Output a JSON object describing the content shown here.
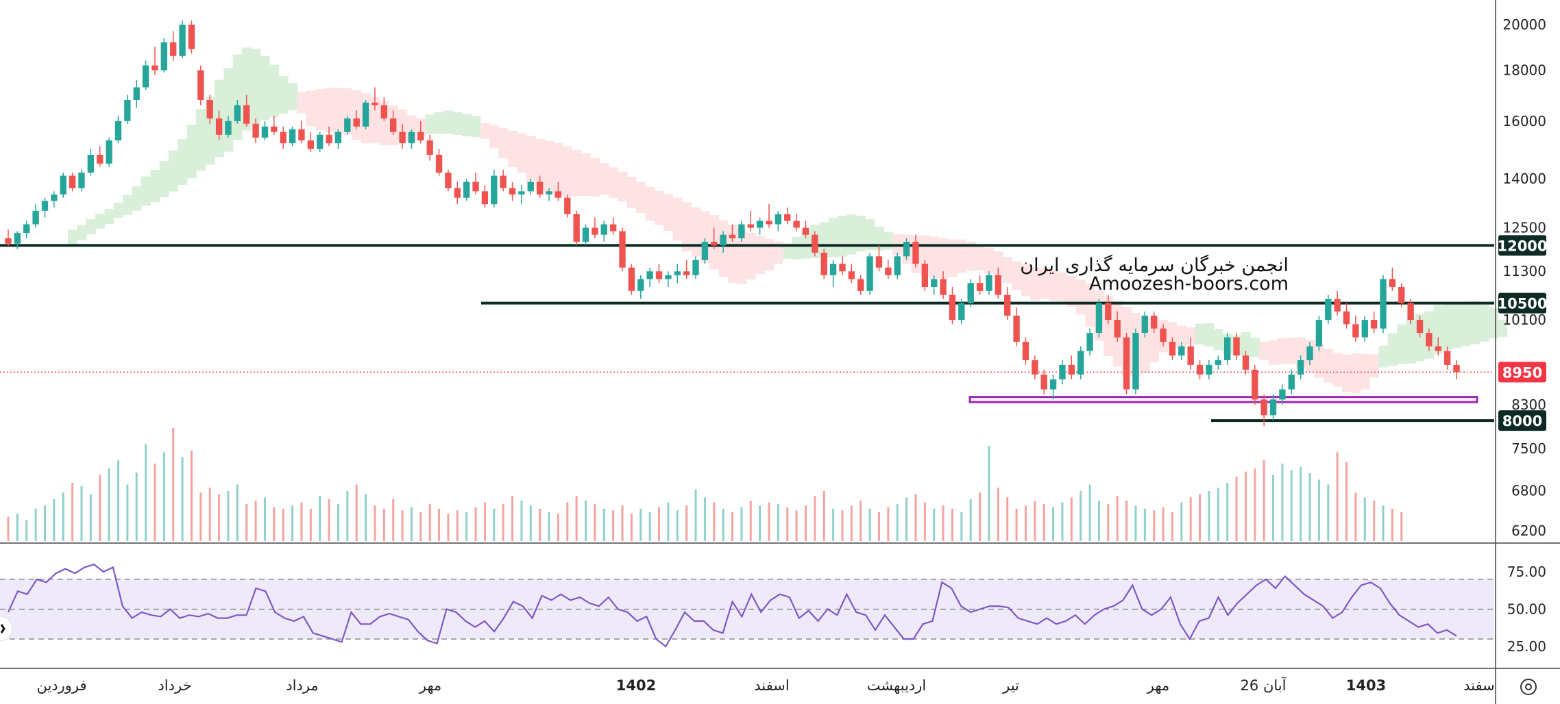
{
  "chart_data": {
    "type": "candlestick",
    "title": "",
    "watermark": {
      "line1": "انجمن خبرگان سرمایه گذاری ایران",
      "line2": "Amoozesh-boors.com"
    },
    "price_axis": {
      "ticks": [
        20000,
        18000,
        16000,
        14000,
        12500,
        11300,
        10100,
        8300,
        7500,
        6800,
        6200
      ],
      "labels": [
        "20000",
        "18000",
        "16000",
        "14000",
        "12500",
        "11300",
        "10100",
        "8300",
        "7500",
        "6800",
        "6200"
      ],
      "scale": "log"
    },
    "time_axis": {
      "labels": [
        {
          "text": "فروردین",
          "bold": false
        },
        {
          "text": "خرداد",
          "bold": false
        },
        {
          "text": "مرداد",
          "bold": false
        },
        {
          "text": "مهر",
          "bold": false
        },
        {
          "text": "1402",
          "bold": true
        },
        {
          "text": "اسفند",
          "bold": false
        },
        {
          "text": "اردیبهشت",
          "bold": false
        },
        {
          "text": "تیر",
          "bold": false
        },
        {
          "text": "مهر",
          "bold": false
        },
        {
          "text": "26 آبان",
          "bold": false
        },
        {
          "text": "1403",
          "bold": true
        },
        {
          "text": "سفند",
          "bold": false
        }
      ]
    },
    "levels": [
      {
        "value": 12000,
        "label": "12000",
        "color": "#0d2b24"
      },
      {
        "value": 10500,
        "label": "10500",
        "color": "#0d2b24"
      },
      {
        "value": 8000,
        "label": "8000",
        "color": "#0d2b24"
      }
    ],
    "last_price": {
      "value": 8950,
      "label": "8950",
      "color": "#f23645"
    },
    "support_zone": {
      "low": 8350,
      "high": 8450,
      "color": "#9c27b0"
    },
    "rsi": {
      "levels": [
        75,
        50,
        25
      ],
      "labels": [
        "75.00",
        "50.00",
        "25.00"
      ],
      "upper": 70,
      "middle": 50,
      "lower": 30,
      "color": "#7e57c2",
      "values": [
        48,
        62,
        60,
        70,
        68,
        74,
        77,
        74,
        78,
        80,
        75,
        78,
        52,
        44,
        48,
        46,
        45,
        50,
        44,
        46,
        45,
        47,
        44,
        44,
        46,
        46,
        64,
        62,
        48,
        44,
        42,
        45,
        34,
        32,
        30,
        28,
        48,
        40,
        40,
        45,
        47,
        45,
        43,
        35,
        29,
        27,
        50,
        48,
        42,
        38,
        42,
        35,
        44,
        55,
        52,
        44,
        59,
        56,
        60,
        56,
        58,
        54,
        52,
        58,
        50,
        48,
        42,
        45,
        30,
        25,
        36,
        48,
        42,
        42,
        36,
        34,
        55,
        45,
        60,
        48,
        56,
        60,
        58,
        44,
        49,
        42,
        50,
        46,
        60,
        48,
        46,
        36,
        46,
        38,
        30,
        30,
        40,
        42,
        68,
        64,
        52,
        48,
        50,
        52,
        52,
        51,
        44,
        42,
        40,
        44,
        40,
        42,
        46,
        40,
        46,
        50,
        52,
        56,
        66,
        50,
        46,
        50,
        58,
        40,
        30,
        42,
        44,
        58,
        46,
        54,
        60,
        66,
        70,
        64,
        72,
        66,
        60,
        56,
        52,
        44,
        48,
        58,
        66,
        68,
        64,
        54,
        46,
        42,
        38,
        40,
        34,
        36,
        32
      ]
    },
    "colors": {
      "up": "#26a69a",
      "down": "#ef5350",
      "cloud_up": "#d9efd9",
      "cloud_down": "#fde3e3"
    },
    "candles": [
      [
        12200,
        12450,
        11950,
        12050
      ],
      [
        12050,
        12400,
        11900,
        12350
      ],
      [
        12350,
        12700,
        12200,
        12600
      ],
      [
        12600,
        13200,
        12500,
        13000
      ],
      [
        13000,
        13400,
        12800,
        13300
      ],
      [
        13300,
        13600,
        13100,
        13500
      ],
      [
        13500,
        14200,
        13400,
        14100
      ],
      [
        14100,
        14200,
        13600,
        13700
      ],
      [
        13700,
        14300,
        13600,
        14200
      ],
      [
        14200,
        15000,
        14100,
        14800
      ],
      [
        14800,
        15100,
        14400,
        14500
      ],
      [
        14500,
        15400,
        14400,
        15300
      ],
      [
        15300,
        16200,
        15200,
        16000
      ],
      [
        16000,
        17000,
        15900,
        16800
      ],
      [
        16800,
        17600,
        16500,
        17300
      ],
      [
        17300,
        18400,
        17200,
        18200
      ],
      [
        18200,
        19000,
        17800,
        18000
      ],
      [
        18000,
        19400,
        17900,
        19200
      ],
      [
        19200,
        19700,
        18400,
        18600
      ],
      [
        18600,
        20200,
        18500,
        20000
      ],
      [
        20000,
        20200,
        18700,
        18900
      ],
      [
        18000,
        18200,
        16600,
        16800
      ],
      [
        16800,
        17000,
        15900,
        16100
      ],
      [
        16100,
        16400,
        15300,
        15500
      ],
      [
        15500,
        16200,
        15400,
        16000
      ],
      [
        16000,
        16800,
        15900,
        16600
      ],
      [
        16600,
        17000,
        15800,
        15900
      ],
      [
        15900,
        16100,
        15200,
        15400
      ],
      [
        15400,
        16000,
        15300,
        15800
      ],
      [
        15800,
        16200,
        15500,
        15600
      ],
      [
        15600,
        15800,
        15000,
        15200
      ],
      [
        15200,
        15800,
        15100,
        15700
      ],
      [
        15700,
        16000,
        15200,
        15300
      ],
      [
        15300,
        15600,
        14900,
        15000
      ],
      [
        15000,
        15600,
        14900,
        15500
      ],
      [
        15500,
        15800,
        15100,
        15200
      ],
      [
        15200,
        15700,
        15000,
        15600
      ],
      [
        15600,
        16200,
        15500,
        16100
      ],
      [
        16100,
        16400,
        15700,
        15800
      ],
      [
        15800,
        16800,
        15700,
        16700
      ],
      [
        16700,
        17300,
        16400,
        16600
      ],
      [
        16600,
        16900,
        16000,
        16100
      ],
      [
        16100,
        16400,
        15500,
        15600
      ],
      [
        15600,
        15900,
        15000,
        15200
      ],
      [
        15200,
        15700,
        15000,
        15600
      ],
      [
        15600,
        16000,
        15200,
        15300
      ],
      [
        15300,
        15500,
        14600,
        14800
      ],
      [
        14800,
        15000,
        14100,
        14200
      ],
      [
        14200,
        14300,
        13600,
        13700
      ],
      [
        13700,
        13900,
        13200,
        13400
      ],
      [
        13400,
        14000,
        13300,
        13900
      ],
      [
        13900,
        14200,
        13500,
        13600
      ],
      [
        13600,
        13800,
        13100,
        13200
      ],
      [
        13200,
        14300,
        13100,
        14100
      ],
      [
        14100,
        14300,
        13600,
        13700
      ],
      [
        13700,
        13900,
        13300,
        13500
      ],
      [
        13500,
        13800,
        13200,
        13600
      ],
      [
        13600,
        14000,
        13500,
        13900
      ],
      [
        13900,
        14100,
        13400,
        13500
      ],
      [
        13500,
        13700,
        13300,
        13600
      ],
      [
        13600,
        13900,
        13300,
        13400
      ],
      [
        13400,
        13500,
        12800,
        12900
      ],
      [
        12900,
        13000,
        12000,
        12100
      ],
      [
        12100,
        12600,
        12000,
        12500
      ],
      [
        12500,
        12800,
        12200,
        12300
      ],
      [
        12300,
        12700,
        12100,
        12600
      ],
      [
        12600,
        12800,
        12300,
        12400
      ],
      [
        12400,
        12500,
        11300,
        11400
      ],
      [
        11400,
        11500,
        10700,
        10800
      ],
      [
        10800,
        11200,
        10600,
        11100
      ],
      [
        11100,
        11400,
        10900,
        11300
      ],
      [
        11300,
        11500,
        11000,
        11100
      ],
      [
        11100,
        11300,
        10900,
        11200
      ],
      [
        11200,
        11500,
        11000,
        11300
      ],
      [
        11300,
        11600,
        11100,
        11200
      ],
      [
        11200,
        11700,
        11100,
        11600
      ],
      [
        11600,
        12200,
        11500,
        12100
      ],
      [
        12100,
        12500,
        11900,
        12000
      ],
      [
        12000,
        12400,
        11800,
        12300
      ],
      [
        12300,
        12600,
        12100,
        12200
      ],
      [
        12200,
        12700,
        12100,
        12600
      ],
      [
        12600,
        13000,
        12400,
        12500
      ],
      [
        12500,
        12800,
        12300,
        12700
      ],
      [
        12700,
        13200,
        12500,
        12600
      ],
      [
        12600,
        13000,
        12400,
        12900
      ],
      [
        12900,
        13100,
        12600,
        12700
      ],
      [
        12700,
        12900,
        12400,
        12500
      ],
      [
        12500,
        12700,
        12200,
        12300
      ],
      [
        12300,
        12400,
        11700,
        11800
      ],
      [
        11800,
        11900,
        11100,
        11200
      ],
      [
        11200,
        11600,
        10900,
        11500
      ],
      [
        11500,
        11700,
        11200,
        11300
      ],
      [
        11300,
        11500,
        11000,
        11100
      ],
      [
        11100,
        11200,
        10700,
        10800
      ],
      [
        10800,
        11800,
        10700,
        11700
      ],
      [
        11700,
        12000,
        11300,
        11400
      ],
      [
        11400,
        11600,
        11100,
        11200
      ],
      [
        11200,
        11800,
        11100,
        11700
      ],
      [
        11700,
        12200,
        11600,
        12100
      ],
      [
        12100,
        12300,
        11400,
        11500
      ],
      [
        11500,
        11600,
        10800,
        10900
      ],
      [
        10900,
        11200,
        10700,
        11100
      ],
      [
        11100,
        11300,
        10600,
        10700
      ],
      [
        10700,
        10900,
        10000,
        10100
      ],
      [
        10100,
        10600,
        10000,
        10500
      ],
      [
        10500,
        11100,
        10400,
        11000
      ],
      [
        11000,
        11200,
        10700,
        10800
      ],
      [
        10800,
        11300,
        10700,
        11200
      ],
      [
        11200,
        11400,
        10600,
        10700
      ],
      [
        10700,
        10900,
        10100,
        10200
      ],
      [
        10200,
        10400,
        9500,
        9600
      ],
      [
        9600,
        9700,
        9100,
        9200
      ],
      [
        9200,
        9300,
        8800,
        8900
      ],
      [
        8900,
        9000,
        8500,
        8600
      ],
      [
        8600,
        8900,
        8400,
        8800
      ],
      [
        8800,
        9200,
        8700,
        9100
      ],
      [
        9100,
        9300,
        8800,
        8900
      ],
      [
        8900,
        9500,
        8800,
        9400
      ],
      [
        9400,
        9900,
        9300,
        9800
      ],
      [
        9800,
        10600,
        9700,
        10500
      ],
      [
        10500,
        10700,
        10000,
        10100
      ],
      [
        10100,
        10300,
        9600,
        9700
      ],
      [
        9700,
        9800,
        8500,
        8600
      ],
      [
        8600,
        9900,
        8500,
        9800
      ],
      [
        9800,
        10300,
        9700,
        10200
      ],
      [
        10200,
        10300,
        9800,
        9900
      ],
      [
        9900,
        10000,
        9500,
        9600
      ],
      [
        9600,
        9700,
        9200,
        9300
      ],
      [
        9300,
        9600,
        9200,
        9500
      ],
      [
        9500,
        9700,
        9000,
        9100
      ],
      [
        9100,
        9200,
        8800,
        8900
      ],
      [
        8900,
        9200,
        8800,
        9100
      ],
      [
        9100,
        9300,
        9000,
        9200
      ],
      [
        9200,
        9800,
        9100,
        9700
      ],
      [
        9700,
        9800,
        9200,
        9300
      ],
      [
        9300,
        9400,
        8900,
        9000
      ],
      [
        9000,
        9100,
        8300,
        8400
      ],
      [
        8400,
        8500,
        7900,
        8100
      ],
      [
        8100,
        8500,
        8000,
        8400
      ],
      [
        8400,
        8700,
        8300,
        8600
      ],
      [
        8600,
        9000,
        8500,
        8900
      ],
      [
        8900,
        9300,
        8800,
        9200
      ],
      [
        9200,
        9600,
        9100,
        9500
      ],
      [
        9500,
        10200,
        9400,
        10100
      ],
      [
        10100,
        10700,
        10000,
        10600
      ],
      [
        10600,
        10800,
        10200,
        10300
      ],
      [
        10300,
        10500,
        9900,
        10000
      ],
      [
        10000,
        10200,
        9600,
        9700
      ],
      [
        9700,
        10200,
        9600,
        10100
      ],
      [
        10100,
        10300,
        9800,
        9900
      ],
      [
        9900,
        11200,
        9800,
        11100
      ],
      [
        11100,
        11400,
        10800,
        10900
      ],
      [
        10900,
        11000,
        10400,
        10500
      ],
      [
        10500,
        10600,
        10000,
        10100
      ],
      [
        10100,
        10200,
        9700,
        9800
      ],
      [
        9800,
        9900,
        9400,
        9500
      ],
      [
        9500,
        9700,
        9300,
        9400
      ],
      [
        9400,
        9500,
        9000,
        9100
      ],
      [
        9100,
        9200,
        8800,
        8950
      ]
    ],
    "volumes": [
      30,
      34,
      26,
      40,
      44,
      52,
      60,
      72,
      68,
      58,
      82,
      90,
      100,
      70,
      85,
      120,
      96,
      110,
      140,
      104,
      112,
      60,
      66,
      58,
      62,
      70,
      46,
      50,
      54,
      42,
      40,
      44,
      48,
      40,
      56,
      52,
      46,
      62,
      70,
      58,
      44,
      40,
      52,
      38,
      42,
      36,
      46,
      40,
      34,
      38,
      36,
      42,
      48,
      40,
      46,
      56,
      50,
      44,
      40,
      36,
      34,
      48,
      56,
      50,
      46,
      40,
      38,
      44,
      34,
      40,
      36,
      42,
      48,
      38,
      44,
      64,
      54,
      48,
      40,
      36,
      42,
      50,
      44,
      48,
      46,
      42,
      38,
      44,
      56,
      62,
      40,
      38,
      44,
      50,
      40,
      36,
      42,
      46,
      54,
      58,
      48,
      40,
      44,
      40,
      36,
      52,
      60,
      118,
      66,
      54,
      40,
      44,
      50,
      46,
      42,
      48,
      54,
      62,
      70,
      50,
      46,
      56,
      50,
      44,
      40,
      38,
      42,
      36,
      48,
      54,
      58,
      62,
      66,
      72,
      80,
      86,
      90,
      100,
      82,
      96,
      88,
      92,
      84,
      76,
      70,
      110,
      98,
      60,
      54,
      50,
      44,
      40,
      36
    ]
  }
}
